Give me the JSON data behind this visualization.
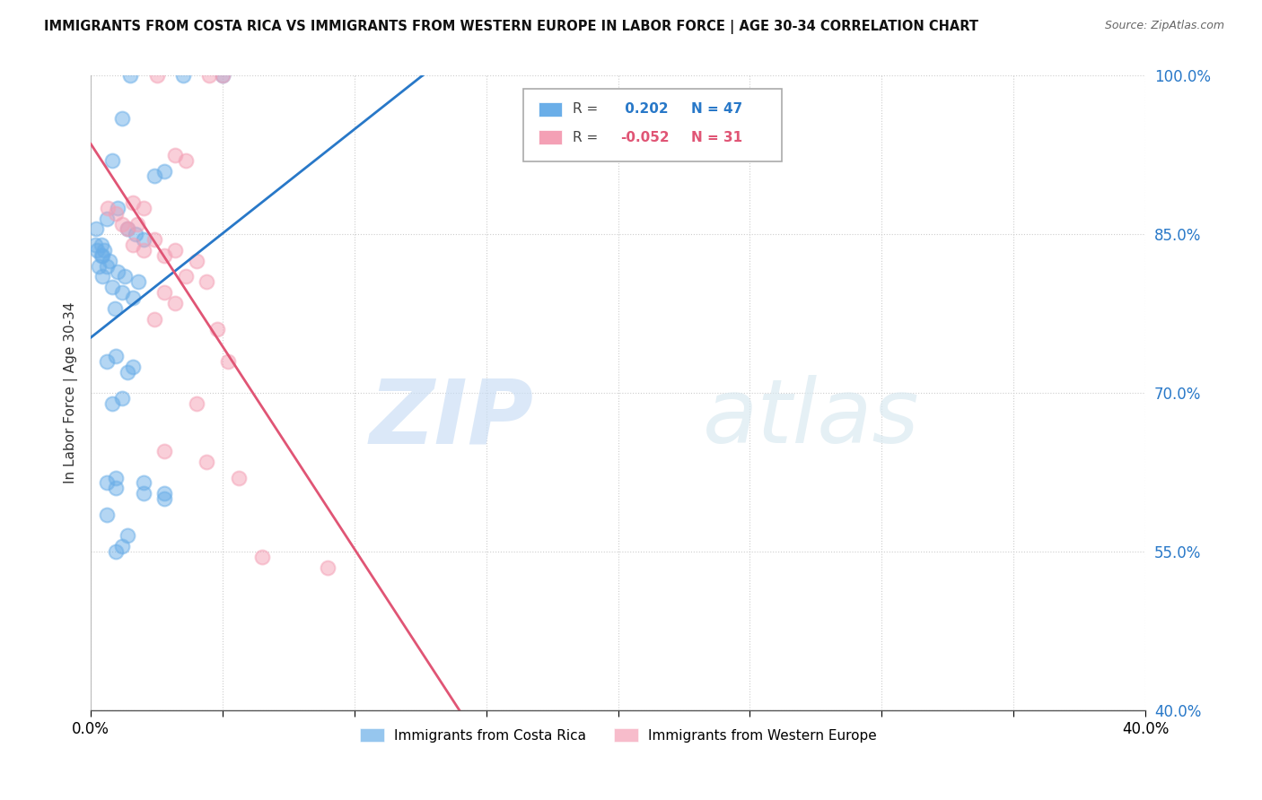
{
  "title": "IMMIGRANTS FROM COSTA RICA VS IMMIGRANTS FROM WESTERN EUROPE IN LABOR FORCE | AGE 30-34 CORRELATION CHART",
  "source": "Source: ZipAtlas.com",
  "ylabel": "In Labor Force | Age 30-34",
  "y_ticks": [
    40.0,
    55.0,
    70.0,
    85.0,
    100.0
  ],
  "x_ticks": [
    0.0,
    5.0,
    10.0,
    15.0,
    20.0,
    25.0,
    30.0,
    35.0,
    40.0
  ],
  "x_min": 0.0,
  "x_max": 40.0,
  "y_min": 40.0,
  "y_max": 100.0,
  "legend_blue": "Immigrants from Costa Rica",
  "legend_pink": "Immigrants from Western Europe",
  "R_blue": 0.202,
  "N_blue": 47,
  "R_pink": -0.052,
  "N_pink": 31,
  "blue_color": "#6aaee8",
  "pink_color": "#f4a0b5",
  "blue_line_color": "#2878c8",
  "pink_line_color": "#e05575",
  "watermark_zip": "ZIP",
  "watermark_atlas": "atlas",
  "blue_points": [
    [
      1.5,
      100.0
    ],
    [
      3.5,
      100.0
    ],
    [
      5.0,
      100.0
    ],
    [
      1.2,
      96.0
    ],
    [
      0.8,
      92.0
    ],
    [
      2.8,
      91.0
    ],
    [
      1.0,
      87.5
    ],
    [
      0.6,
      86.5
    ],
    [
      1.4,
      85.5
    ],
    [
      1.7,
      85.0
    ],
    [
      2.0,
      84.5
    ],
    [
      0.4,
      84.0
    ],
    [
      0.5,
      83.5
    ],
    [
      0.25,
      83.5
    ],
    [
      0.45,
      83.0
    ],
    [
      0.7,
      82.5
    ],
    [
      0.3,
      82.0
    ],
    [
      1.0,
      81.5
    ],
    [
      1.3,
      81.0
    ],
    [
      0.15,
      84.0
    ],
    [
      0.2,
      85.5
    ],
    [
      0.4,
      83.0
    ],
    [
      0.6,
      82.0
    ],
    [
      0.45,
      81.0
    ],
    [
      0.8,
      80.0
    ],
    [
      1.2,
      79.5
    ],
    [
      1.6,
      79.0
    ],
    [
      0.9,
      78.0
    ],
    [
      1.8,
      80.5
    ],
    [
      2.4,
      90.5
    ],
    [
      0.6,
      73.0
    ],
    [
      0.95,
      73.5
    ],
    [
      1.4,
      72.0
    ],
    [
      1.6,
      72.5
    ],
    [
      0.8,
      69.0
    ],
    [
      1.2,
      69.5
    ],
    [
      2.0,
      61.5
    ],
    [
      0.95,
      62.0
    ],
    [
      2.8,
      60.5
    ],
    [
      0.6,
      58.5
    ],
    [
      1.4,
      56.5
    ],
    [
      0.6,
      61.5
    ],
    [
      0.95,
      61.0
    ],
    [
      2.8,
      60.0
    ],
    [
      1.2,
      55.5
    ],
    [
      2.0,
      60.5
    ],
    [
      0.95,
      55.0
    ]
  ],
  "pink_points": [
    [
      2.5,
      100.0
    ],
    [
      4.5,
      100.0
    ],
    [
      5.0,
      100.0
    ],
    [
      3.2,
      92.5
    ],
    [
      3.6,
      92.0
    ],
    [
      1.6,
      88.0
    ],
    [
      2.0,
      87.5
    ],
    [
      0.65,
      87.5
    ],
    [
      0.95,
      87.0
    ],
    [
      1.2,
      86.0
    ],
    [
      1.4,
      85.5
    ],
    [
      1.75,
      86.0
    ],
    [
      2.4,
      84.5
    ],
    [
      1.6,
      84.0
    ],
    [
      2.0,
      83.5
    ],
    [
      2.8,
      83.0
    ],
    [
      3.2,
      83.5
    ],
    [
      4.0,
      82.5
    ],
    [
      3.6,
      81.0
    ],
    [
      4.4,
      80.5
    ],
    [
      4.8,
      76.0
    ],
    [
      2.8,
      79.5
    ],
    [
      3.2,
      78.5
    ],
    [
      2.4,
      77.0
    ],
    [
      5.2,
      73.0
    ],
    [
      4.0,
      69.0
    ],
    [
      2.8,
      64.5
    ],
    [
      4.4,
      63.5
    ],
    [
      5.6,
      62.0
    ],
    [
      6.5,
      54.5
    ],
    [
      9.0,
      53.5
    ]
  ]
}
